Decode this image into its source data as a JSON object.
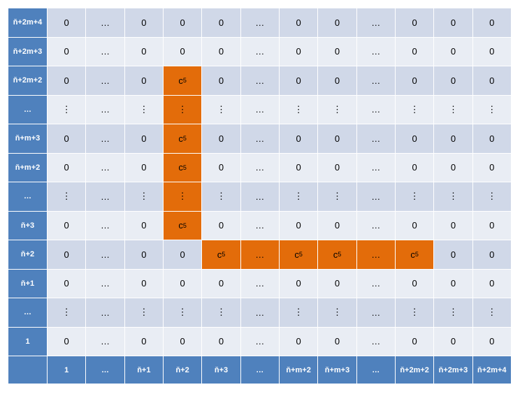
{
  "row_labels": [
    "ň+2m+4",
    "ň+2m+3",
    "ň+2m+2",
    "…",
    "ň+m+3",
    "ň+m+2",
    "…",
    "ň+3",
    "ň+2",
    "ň+1",
    "…",
    "1"
  ],
  "col_labels": [
    "1",
    "…",
    "ň+1",
    "ň+2",
    "ň+3",
    "…",
    "ň+m+2",
    "ň+m+3",
    "…",
    "ň+2m+2",
    "ň+2m+3",
    "ň+2m+4"
  ],
  "cells": [
    [
      "0",
      "…",
      "0",
      "0",
      "0",
      "…",
      "0",
      "0",
      "…",
      "0",
      "0",
      "0"
    ],
    [
      "0",
      "…",
      "0",
      "0",
      "0",
      "…",
      "0",
      "0",
      "…",
      "0",
      "0",
      "0"
    ],
    [
      "0",
      "…",
      "0",
      "c5",
      "0",
      "…",
      "0",
      "0",
      "…",
      "0",
      "0",
      "0"
    ],
    [
      "⋮",
      "…",
      "⋮",
      "⋮",
      "⋮",
      "…",
      "⋮",
      "⋮",
      "…",
      "⋮",
      "⋮",
      "⋮"
    ],
    [
      "0",
      "…",
      "0",
      "c5",
      "0",
      "…",
      "0",
      "0",
      "…",
      "0",
      "0",
      "0"
    ],
    [
      "0",
      "…",
      "0",
      "c5",
      "0",
      "…",
      "0",
      "0",
      "…",
      "0",
      "0",
      "0"
    ],
    [
      "⋮",
      "…",
      "⋮",
      "⋮",
      "⋮",
      "…",
      "⋮",
      "⋮",
      "…",
      "⋮",
      "⋮",
      "⋮"
    ],
    [
      "0",
      "…",
      "0",
      "c5",
      "0",
      "…",
      "0",
      "0",
      "…",
      "0",
      "0",
      "0"
    ],
    [
      "0",
      "…",
      "0",
      "0",
      "c5",
      "…",
      "c5",
      "c5",
      "…",
      "c5",
      "0",
      "0"
    ],
    [
      "0",
      "…",
      "0",
      "0",
      "0",
      "…",
      "0",
      "0",
      "…",
      "0",
      "0",
      "0"
    ],
    [
      "⋮",
      "…",
      "⋮",
      "⋮",
      "⋮",
      "…",
      "⋮",
      "⋮",
      "…",
      "⋮",
      "⋮",
      "⋮"
    ],
    [
      "0",
      "…",
      "0",
      "0",
      "0",
      "…",
      "0",
      "0",
      "…",
      "0",
      "0",
      "0"
    ]
  ],
  "highlighted": [
    [
      2,
      3
    ],
    [
      3,
      3
    ],
    [
      4,
      3
    ],
    [
      5,
      3
    ],
    [
      6,
      3
    ],
    [
      7,
      3
    ],
    [
      8,
      4
    ],
    [
      8,
      5
    ],
    [
      8,
      6
    ],
    [
      8,
      7
    ],
    [
      8,
      8
    ],
    [
      8,
      9
    ]
  ],
  "colors": {
    "header": "#4f81bd",
    "stripe_dark": "#d0d8e8",
    "stripe_light": "#e9edf4",
    "highlight": "#e36c0a"
  }
}
